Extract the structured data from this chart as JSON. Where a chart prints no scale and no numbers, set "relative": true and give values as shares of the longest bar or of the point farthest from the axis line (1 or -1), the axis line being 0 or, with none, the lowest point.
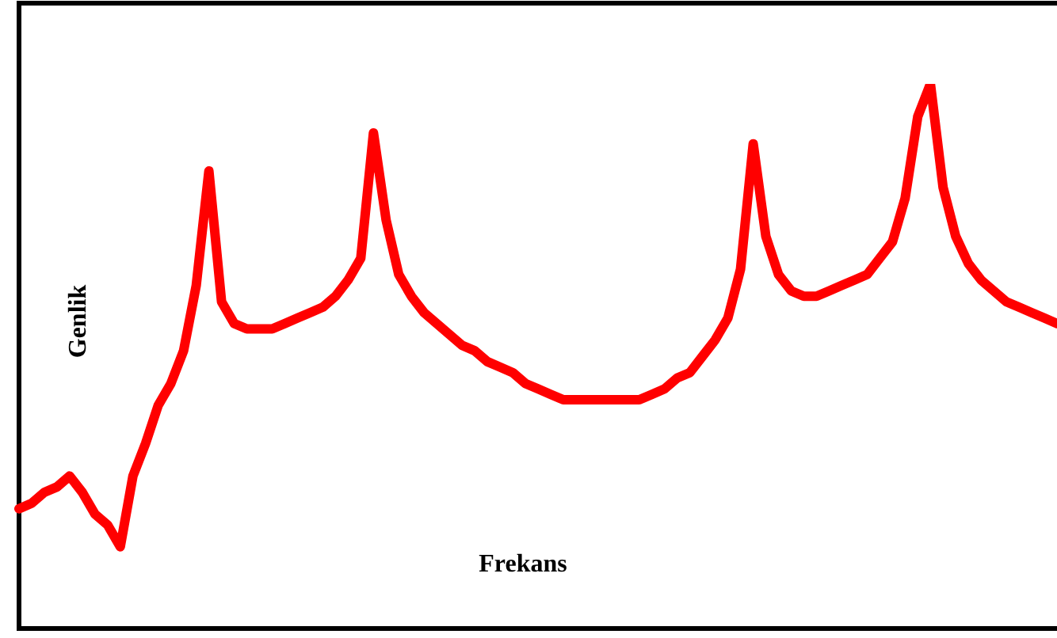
{
  "chart_data": {
    "type": "line",
    "relative": true,
    "xlabel": "Frekans",
    "ylabel": "Genlik",
    "legend": false,
    "marker": "none",
    "line_style": "solid",
    "categories": [
      null,
      null,
      null,
      null,
      null,
      null,
      null,
      null,
      null,
      null,
      null,
      null,
      null,
      null,
      null,
      null,
      null,
      null,
      null,
      null,
      null,
      null,
      null,
      null,
      null,
      null,
      null,
      null,
      null,
      null,
      null,
      null,
      null,
      null,
      null,
      null,
      null,
      null,
      null,
      null,
      null,
      null,
      null,
      null,
      null,
      null,
      null,
      null,
      null,
      null,
      null,
      null,
      null,
      null,
      null,
      null,
      null,
      null,
      null,
      null,
      null,
      null,
      null,
      null,
      null,
      null,
      null,
      null,
      null,
      null,
      null,
      null,
      null,
      null,
      null,
      null,
      null,
      null,
      null,
      null,
      null,
      null,
      null
    ],
    "series": [
      {
        "color": "#ff0000",
        "values": [
          0.22,
          0.23,
          0.25,
          0.26,
          0.28,
          0.25,
          0.21,
          0.19,
          0.15,
          0.28,
          0.34,
          0.41,
          0.45,
          0.51,
          0.63,
          0.84,
          0.6,
          0.56,
          0.55,
          0.55,
          0.55,
          0.56,
          0.57,
          0.58,
          0.59,
          0.61,
          0.64,
          0.68,
          0.91,
          0.75,
          0.65,
          0.61,
          0.58,
          0.56,
          0.54,
          0.52,
          0.51,
          0.49,
          0.48,
          0.47,
          0.45,
          0.44,
          0.43,
          0.42,
          0.42,
          0.42,
          0.42,
          0.42,
          0.42,
          0.42,
          0.43,
          0.44,
          0.46,
          0.47,
          0.5,
          0.53,
          0.57,
          0.66,
          0.89,
          0.72,
          0.65,
          0.62,
          0.61,
          0.61,
          0.62,
          0.63,
          0.64,
          0.65,
          0.68,
          0.71,
          0.79,
          0.94,
          1,
          0.81,
          0.72,
          0.67,
          0.64,
          0.62,
          0.6,
          0.59,
          0.58,
          0.57,
          0.56
        ]
      }
    ]
  }
}
